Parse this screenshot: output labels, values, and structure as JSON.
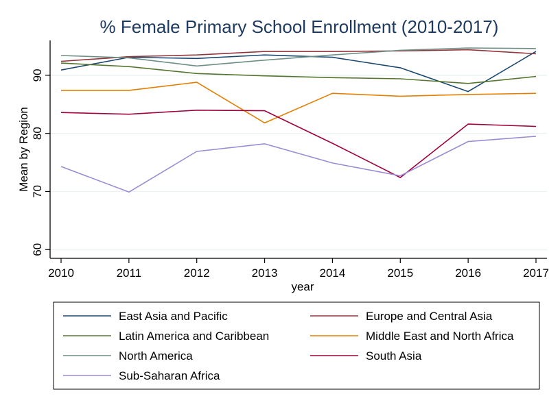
{
  "chart_data": {
    "type": "line",
    "title": "% Female Primary School Enrollment (2010-2017)",
    "xlabel": "year",
    "ylabel": "Mean by Region",
    "x": [
      2010,
      2011,
      2012,
      2013,
      2014,
      2015,
      2016,
      2017
    ],
    "ylim": [
      58.5,
      96
    ],
    "yticks": [
      60,
      70,
      80,
      90
    ],
    "grid": true,
    "legend_position": "bottom",
    "series": [
      {
        "name": "East Asia and Pacific",
        "color": "#1a476f",
        "values": [
          90.9,
          93.1,
          92.9,
          93.5,
          93.1,
          91.3,
          87.2,
          94.1
        ]
      },
      {
        "name": "Europe and Central Asia",
        "color": "#90353b",
        "values": [
          92.4,
          93.2,
          93.5,
          94.1,
          94.1,
          94.2,
          94.4,
          93.7
        ]
      },
      {
        "name": "Latin America and Caribbean",
        "color": "#55752f",
        "values": [
          92.1,
          91.5,
          90.3,
          89.9,
          89.6,
          89.4,
          88.6,
          89.8
        ]
      },
      {
        "name": "Middle East and North Africa",
        "color": "#e37e00",
        "values": [
          87.4,
          87.4,
          88.8,
          81.8,
          86.9,
          86.4,
          86.7,
          86.9
        ]
      },
      {
        "name": "North America",
        "color": "#6e8e84",
        "values": [
          93.4,
          93.0,
          91.6,
          92.6,
          93.5,
          94.3,
          94.7,
          94.6
        ]
      },
      {
        "name": "South Asia",
        "color": "#a0003c",
        "values": [
          83.6,
          83.3,
          84.0,
          83.9,
          78.3,
          72.4,
          81.6,
          81.2
        ]
      },
      {
        "name": "Sub-Saharan Africa",
        "color": "#9b8bd4",
        "values": [
          74.3,
          69.9,
          76.9,
          78.2,
          74.9,
          72.7,
          78.6,
          79.5
        ]
      }
    ]
  }
}
